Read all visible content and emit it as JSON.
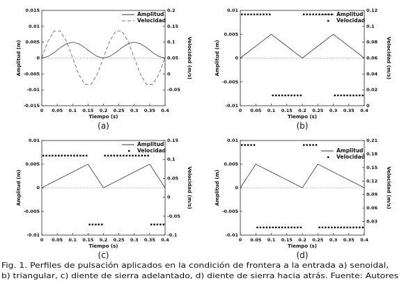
{
  "chart_data": [
    {
      "type": "line",
      "panel_label": "(a)",
      "x_label": "Tiempo (s)",
      "y_label": "Amplitud (m)",
      "y2_label": "Velocidad (m/s)",
      "xlim": [
        0,
        0.4
      ],
      "xticks": [
        0,
        0.05,
        0.1,
        0.15,
        0.2,
        0.25,
        0.3,
        0.35,
        0.4
      ],
      "ylim": [
        -0.015,
        0.015
      ],
      "yticks": [
        -0.015,
        -0.01,
        -0.005,
        0,
        0.005,
        0.01,
        0.015
      ],
      "y2lim": [
        -0.1,
        0.2
      ],
      "y2ticks": [
        -0.05,
        0,
        0.05,
        0.1,
        0.15,
        0.2
      ],
      "zero_line": true,
      "legend": "upper right",
      "series": [
        {
          "name": "Amplitud",
          "color": "#333333",
          "style": "solid",
          "x": [
            0,
            0.02,
            0.04,
            0.06,
            0.08,
            0.1,
            0.12,
            0.14,
            0.16,
            0.18,
            0.2,
            0.22,
            0.24,
            0.26,
            0.28,
            0.3,
            0.32,
            0.34,
            0.36,
            0.38,
            0.4
          ],
          "values": [
            0,
            0.00048,
            0.00173,
            0.00327,
            0.00452,
            0.005,
            0.00452,
            0.00327,
            0.00173,
            0.00048,
            0,
            0.00048,
            0.00173,
            0.00327,
            0.00452,
            0.005,
            0.00452,
            0.00327,
            0.00173,
            0.00048,
            0
          ]
        },
        {
          "name": "Velocidad",
          "color": "#777777",
          "style": "dashed",
          "axis": "y2",
          "x": [
            0,
            0.02,
            0.04,
            0.06,
            0.08,
            0.1,
            0.12,
            0.14,
            0.16,
            0.18,
            0.2,
            0.22,
            0.24,
            0.26,
            0.28,
            0.3,
            0.32,
            0.34,
            0.36,
            0.38,
            0.4
          ],
          "values": [
            0.051,
            0.103,
            0.135,
            0.135,
            0.103,
            0.051,
            -0.001,
            -0.033,
            -0.033,
            -0.001,
            0.051,
            0.103,
            0.135,
            0.135,
            0.103,
            0.051,
            -0.001,
            -0.033,
            -0.033,
            -0.001,
            0.051
          ]
        }
      ]
    },
    {
      "type": "line",
      "panel_label": "(b)",
      "x_label": "Tiempo (s)",
      "y_label": "Amplitud (m)",
      "y2_label": "Velocidad (m/s)",
      "xlim": [
        0,
        0.4
      ],
      "xticks": [
        0,
        0.05,
        0.1,
        0.15,
        0.2,
        0.25,
        0.3,
        0.35,
        0.4
      ],
      "ylim": [
        -0.01,
        0.01
      ],
      "yticks": [
        -0.01,
        -0.005,
        0,
        0.005,
        0.01
      ],
      "y2lim": [
        0,
        0.12
      ],
      "y2ticks": [
        0,
        0.02,
        0.04,
        0.06,
        0.08,
        0.1,
        0.12
      ],
      "zero_line": true,
      "legend": "upper right",
      "series": [
        {
          "name": "Amplitud",
          "color": "#333333",
          "style": "solid",
          "x": [
            0,
            0.1,
            0.2,
            0.3,
            0.4
          ],
          "values": [
            0,
            0.005,
            0,
            0.005,
            0
          ]
        },
        {
          "name": "Velocidad",
          "color": "#000000",
          "style": "dots",
          "axis": "y2",
          "x": [
            0.005,
            0.015,
            0.025,
            0.035,
            0.045,
            0.055,
            0.065,
            0.075,
            0.085,
            0.095,
            0.105,
            0.115,
            0.125,
            0.135,
            0.145,
            0.155,
            0.165,
            0.175,
            0.185,
            0.195,
            0.205,
            0.215,
            0.225,
            0.235,
            0.245,
            0.255,
            0.265,
            0.275,
            0.285,
            0.295,
            0.305,
            0.315,
            0.325,
            0.335,
            0.345,
            0.355,
            0.365,
            0.375,
            0.385,
            0.395
          ],
          "values": [
            0.115,
            0.115,
            0.115,
            0.115,
            0.115,
            0.115,
            0.115,
            0.115,
            0.115,
            0.115,
            0.013,
            0.013,
            0.013,
            0.013,
            0.013,
            0.013,
            0.013,
            0.013,
            0.013,
            0.013,
            0.115,
            0.115,
            0.115,
            0.115,
            0.115,
            0.115,
            0.115,
            0.115,
            0.115,
            0.115,
            0.013,
            0.013,
            0.013,
            0.013,
            0.013,
            0.013,
            0.013,
            0.013,
            0.013,
            0.013
          ]
        }
      ]
    },
    {
      "type": "line",
      "panel_label": "(c)",
      "x_label": "Tiempo (s)",
      "y_label": "Amplitud (m)",
      "y2_label": "Velocidad (m/s)",
      "xlim": [
        0,
        0.4
      ],
      "xticks": [
        0,
        0.05,
        0.1,
        0.15,
        0.2,
        0.25,
        0.3,
        0.35,
        0.4
      ],
      "ylim": [
        -0.01,
        0.01
      ],
      "yticks": [
        -0.01,
        -0.005,
        0,
        0.005,
        0.01
      ],
      "y2lim": [
        -0.1,
        0.15
      ],
      "y2ticks": [
        -0.1,
        -0.05,
        0,
        0.05,
        0.1,
        0.15
      ],
      "zero_line": true,
      "legend": "upper right",
      "series": [
        {
          "name": "Amplitud",
          "color": "#333333",
          "style": "solid",
          "x": [
            0,
            0.15,
            0.2,
            0.35,
            0.4
          ],
          "values": [
            0,
            0.005,
            0,
            0.005,
            0
          ]
        },
        {
          "name": "Velocidad",
          "color": "#000000",
          "style": "dots",
          "axis": "y2",
          "x": [
            0.005,
            0.015,
            0.025,
            0.035,
            0.045,
            0.055,
            0.065,
            0.075,
            0.085,
            0.095,
            0.105,
            0.115,
            0.125,
            0.135,
            0.145,
            0.155,
            0.165,
            0.175,
            0.185,
            0.195,
            0.205,
            0.215,
            0.225,
            0.235,
            0.245,
            0.255,
            0.265,
            0.275,
            0.285,
            0.295,
            0.305,
            0.315,
            0.325,
            0.335,
            0.345,
            0.355,
            0.365,
            0.375,
            0.385,
            0.395
          ],
          "values": [
            0.11,
            0.11,
            0.11,
            0.11,
            0.11,
            0.11,
            0.11,
            0.11,
            0.11,
            0.11,
            0.11,
            0.11,
            0.11,
            0.11,
            0.11,
            -0.072,
            -0.072,
            -0.072,
            -0.072,
            -0.072,
            0.11,
            0.11,
            0.11,
            0.11,
            0.11,
            0.11,
            0.11,
            0.11,
            0.11,
            0.11,
            0.11,
            0.11,
            0.11,
            0.11,
            0.11,
            -0.072,
            -0.072,
            -0.072,
            -0.072,
            -0.072
          ]
        }
      ]
    },
    {
      "type": "line",
      "panel_label": "(d)",
      "x_label": "Tiempo (s)",
      "y_label": "Amplitud (m)",
      "y2_label": "Velocidad (m/s)",
      "xlim": [
        0,
        0.4
      ],
      "xticks": [
        0,
        0.05,
        0.1,
        0.15,
        0.2,
        0.25,
        0.3,
        0.35,
        0.4
      ],
      "ylim": [
        -0.01,
        0.01
      ],
      "yticks": [
        -0.01,
        -0.005,
        0,
        0.005,
        0.01
      ],
      "y2lim": [
        0,
        0.21
      ],
      "y2ticks": [
        0.03,
        0.06,
        0.09,
        0.12,
        0.15,
        0.18,
        0.21
      ],
      "zero_line": true,
      "legend": "upper right",
      "series": [
        {
          "name": "Amplitud",
          "color": "#333333",
          "style": "solid",
          "x": [
            0,
            0.05,
            0.2,
            0.25,
            0.4
          ],
          "values": [
            0,
            0.005,
            0,
            0.005,
            0
          ]
        },
        {
          "name": "Velocidad",
          "color": "#000000",
          "style": "dots",
          "axis": "y2",
          "x": [
            0.005,
            0.015,
            0.025,
            0.035,
            0.045,
            0.055,
            0.065,
            0.075,
            0.085,
            0.095,
            0.105,
            0.115,
            0.125,
            0.135,
            0.145,
            0.155,
            0.165,
            0.175,
            0.185,
            0.195,
            0.205,
            0.215,
            0.225,
            0.235,
            0.245,
            0.255,
            0.265,
            0.275,
            0.285,
            0.295,
            0.305,
            0.315,
            0.325,
            0.335,
            0.345,
            0.355,
            0.365,
            0.375,
            0.385,
            0.395
          ],
          "values": [
            0.2,
            0.2,
            0.2,
            0.2,
            0.2,
            0.017,
            0.017,
            0.017,
            0.017,
            0.017,
            0.017,
            0.017,
            0.017,
            0.017,
            0.017,
            0.017,
            0.017,
            0.017,
            0.017,
            0.017,
            0.2,
            0.2,
            0.2,
            0.2,
            0.2,
            0.017,
            0.017,
            0.017,
            0.017,
            0.017,
            0.017,
            0.017,
            0.017,
            0.017,
            0.017,
            0.017,
            0.017,
            0.017,
            0.017,
            0.017
          ]
        }
      ]
    }
  ],
  "caption": [
    "Fig. 1. Perfiles de pulsación aplicados en la condición de frontera a la entrada a) senoidal,",
    "b) triangular, c) diente de sierra adelantado, d) diente de sierra hacia atrás. Fuente: Autores"
  ]
}
